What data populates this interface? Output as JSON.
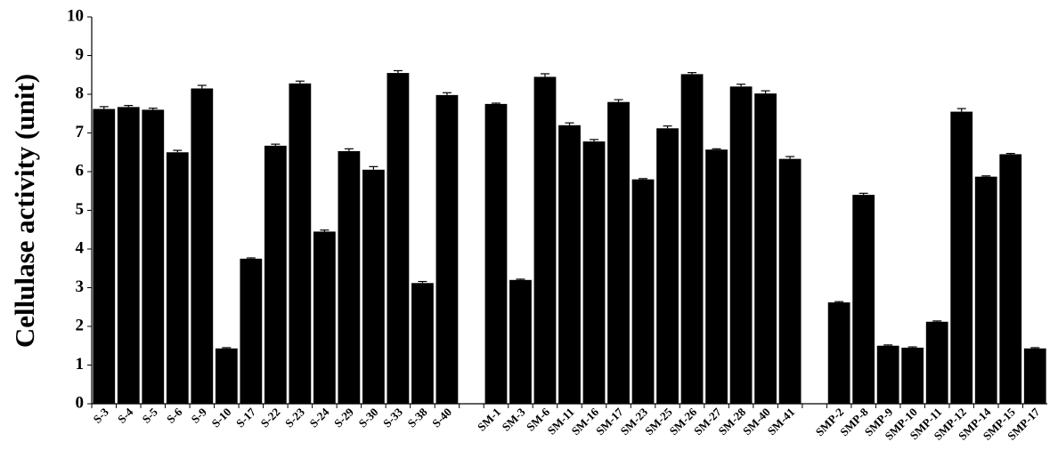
{
  "chart_data": {
    "type": "bar",
    "y_label": "Cellulase activity (unit)",
    "categories": [
      "S-3",
      "S-4",
      "S-5",
      "S-6",
      "S-9",
      "S-10",
      "S-17",
      "S-22",
      "S-23",
      "S-24",
      "S-29",
      "S-30",
      "S-33",
      "S-38",
      "S-40",
      null,
      "SM-1",
      "SM-3",
      "SM-6",
      "SM-11",
      "SM-16",
      "SM-17",
      "SM-23",
      "SM-25",
      "SM-26",
      "SM-27",
      "SM-28",
      "SM-40",
      "SM-41",
      null,
      "SMP-2",
      "SMP-8",
      "SMP-9",
      "SMP-10",
      "SMP-11",
      "SMP-12",
      "SMP-14",
      "SMP-15",
      "SMP-17"
    ],
    "values": [
      7.62,
      7.67,
      7.6,
      6.5,
      8.15,
      1.43,
      3.75,
      6.67,
      8.28,
      4.45,
      6.53,
      6.05,
      8.55,
      3.12,
      7.98,
      null,
      7.75,
      3.2,
      8.45,
      7.2,
      6.78,
      7.8,
      5.8,
      7.12,
      8.52,
      6.57,
      8.2,
      8.02,
      6.33,
      null,
      2.62,
      5.4,
      1.5,
      1.45,
      2.12,
      7.55,
      5.87,
      6.45,
      1.43
    ],
    "errors": [
      0.06,
      0.04,
      0.04,
      0.05,
      0.08,
      0.02,
      0.02,
      0.04,
      0.06,
      0.04,
      0.06,
      0.08,
      0.06,
      0.04,
      0.06,
      null,
      0.02,
      0.02,
      0.08,
      0.06,
      0.05,
      0.06,
      0.02,
      0.06,
      0.04,
      0.02,
      0.06,
      0.07,
      0.06,
      null,
      0.02,
      0.04,
      0.02,
      0.02,
      0.02,
      0.08,
      0.02,
      0.02,
      0.02
    ],
    "color": "#000000",
    "ylim": [
      0,
      10
    ],
    "yticks": [
      0,
      1,
      2,
      3,
      4,
      5,
      6,
      7,
      8,
      9,
      10
    ],
    "grid": false
  }
}
